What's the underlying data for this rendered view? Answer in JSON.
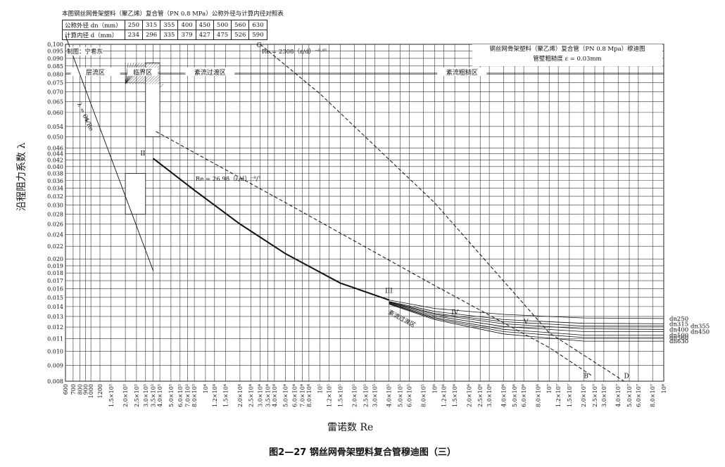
{
  "header": {
    "table_title": "本图钢丝网骨架塑料（聚乙烯）复合管（PN 0.8 MPa）公称外径与计算内径对照表",
    "row1_label": "公称外径 dn（mm）",
    "row2_label": "计算内径 d（mm）",
    "outer_diameters": [
      "250",
      "315",
      "355",
      "400",
      "450",
      "500",
      "560",
      "630"
    ],
    "inner_diameters": [
      "234",
      "296",
      "335",
      "379",
      "427",
      "475",
      "526",
      "590"
    ],
    "maker": "制图：宁希东"
  },
  "legend_box": {
    "line1": "钢丝网骨架塑料（聚乙烯）复合管（PN 0.8 Mpa）穆迪图",
    "line2": "管壁粗糙度 ε = 0.03mm"
  },
  "caption": "图2—27  钢丝网骨架塑料复合管穆迪图（三）",
  "chart_data": {
    "type": "line",
    "xscale": "log",
    "yscale": "log",
    "xlim": [
      600,
      100000000
    ],
    "ylim": [
      0.008,
      0.1
    ],
    "xlabel": "雷诺数 Re",
    "ylabel": "沿程阻力系数 λ",
    "grid": true,
    "y_ticks": [
      "0.008",
      "0.009",
      "0.010",
      "0.011",
      "0.012",
      "0.013",
      "0.014",
      "0.015",
      "0.016",
      "0.017",
      "0.018",
      "0.019",
      "0.020",
      "0.022",
      "0.024",
      "0.026",
      "0.028",
      "0.030",
      "0.032",
      "0.034",
      "0.036",
      "0.038",
      "0.040",
      "0.042",
      "0.044",
      "0.046",
      "0.050",
      "0.054",
      "0.060",
      "0.065",
      "0.070",
      "0.075",
      "0.080",
      "0.085",
      "0.090",
      "0.095",
      "0.100"
    ],
    "x_ticks": [
      {
        "v": 600,
        "t": "600"
      },
      {
        "v": 700,
        "t": "700"
      },
      {
        "v": 800,
        "t": "800"
      },
      {
        "v": 900,
        "t": "900"
      },
      {
        "v": 1000,
        "t": "1000"
      },
      {
        "v": 1200,
        "t": "1200"
      },
      {
        "v": 1500,
        "t": "1.5×10³"
      },
      {
        "v": 2000,
        "t": "2.0×10³"
      },
      {
        "v": 2500,
        "t": "2.5×10³"
      },
      {
        "v": 3000,
        "t": "3.0×10³"
      },
      {
        "v": 3500,
        "t": "3.5×10³"
      },
      {
        "v": 4000,
        "t": "4.0×10³"
      },
      {
        "v": 5000,
        "t": "5.0×10³"
      },
      {
        "v": 6000,
        "t": "6.0×10³"
      },
      {
        "v": 7000,
        "t": "7.0×10³"
      },
      {
        "v": 8000,
        "t": "8.0×10³"
      },
      {
        "v": 10000,
        "t": "10⁴"
      },
      {
        "v": 12000,
        "t": "1.2×10⁴"
      },
      {
        "v": 15000,
        "t": "1.5×10⁴"
      },
      {
        "v": 20000,
        "t": "2.0×10⁴"
      },
      {
        "v": 25000,
        "t": "2.5×10⁴"
      },
      {
        "v": 30000,
        "t": "3.0×10⁴"
      },
      {
        "v": 35000,
        "t": "3.5×10⁴"
      },
      {
        "v": 40000,
        "t": "4.0×10⁴"
      },
      {
        "v": 50000,
        "t": "5.0×10⁴"
      },
      {
        "v": 60000,
        "t": "6.0×10⁴"
      },
      {
        "v": 70000,
        "t": "7.0×10⁴"
      },
      {
        "v": 80000,
        "t": "8.0×10⁴"
      },
      {
        "v": 100000,
        "t": "10⁵"
      },
      {
        "v": 120000,
        "t": "1.2×10⁵"
      },
      {
        "v": 150000,
        "t": "1.5×10⁵"
      },
      {
        "v": 200000,
        "t": "2.0×10⁵"
      },
      {
        "v": 250000,
        "t": "2.5×10⁵"
      },
      {
        "v": 300000,
        "t": "3.0×10⁵"
      },
      {
        "v": 400000,
        "t": "4.0×10⁵"
      },
      {
        "v": 500000,
        "t": "5.0×10⁵"
      },
      {
        "v": 600000,
        "t": "6.0×10⁵"
      },
      {
        "v": 800000,
        "t": "8.0×10⁵"
      },
      {
        "v": 1000000,
        "t": "10⁶"
      },
      {
        "v": 1200000,
        "t": "1.2×10⁶"
      },
      {
        "v": 1500000,
        "t": "1.5×10⁶"
      },
      {
        "v": 2000000,
        "t": "2.0×10⁶"
      },
      {
        "v": 2500000,
        "t": "2.5×10⁶"
      },
      {
        "v": 3000000,
        "t": "3.0×10⁶"
      },
      {
        "v": 4000000,
        "t": "4.0×10⁶"
      },
      {
        "v": 5000000,
        "t": "5.0×10⁶"
      },
      {
        "v": 6000000,
        "t": "6.0×10⁶"
      },
      {
        "v": 8000000,
        "t": "8.0×10⁶"
      },
      {
        "v": 10000000,
        "t": "10⁷"
      },
      {
        "v": 12000000,
        "t": "1.2×10⁷"
      },
      {
        "v": 15000000,
        "t": "1.5×10⁷"
      },
      {
        "v": 20000000,
        "t": "2.0×10⁷"
      },
      {
        "v": 25000000,
        "t": "2.5×10⁷"
      },
      {
        "v": 30000000,
        "t": "3.0×10⁷"
      },
      {
        "v": 40000000,
        "t": "4.0×10⁷"
      },
      {
        "v": 50000000,
        "t": "5.0×10⁷"
      },
      {
        "v": 60000000,
        "t": "6.0×10⁷"
      },
      {
        "v": 80000000,
        "t": "8.0×10⁷"
      },
      {
        "v": 100000000,
        "t": "10⁸"
      }
    ],
    "regions": [
      {
        "label": "层流区",
        "from": 600,
        "to": 2000
      },
      {
        "label": "临界区",
        "from": 2000,
        "to": 4000
      },
      {
        "label": "紊流过渡区",
        "from": 4000,
        "to": 30000
      },
      {
        "label": "紊流粗糙区",
        "from": 30000,
        "to": 100000000
      }
    ],
    "formula_labels": {
      "laminar": "λ = 64/Re",
      "boundary_c": "Re = 2308（ε/d）⁻⁰·⁸⁵",
      "boundary_b": "Re = 26.98（ε/d）⁻⁸/⁷",
      "transition_area": "紊流过渡区"
    },
    "zone_marks": [
      "I",
      "II",
      "III",
      "IV",
      "V"
    ],
    "curve_marks": [
      "C",
      "B",
      "D"
    ],
    "laminar_line": {
      "x": [
        600,
        3500
      ],
      "y": [
        0.1067,
        0.0183
      ]
    },
    "smooth_curve": {
      "x": [
        3500,
        8000,
        20000,
        50000,
        150000,
        400000
      ],
      "y": [
        0.0425,
        0.0335,
        0.026,
        0.0208,
        0.0167,
        0.0147
      ]
    },
    "boundary_c": {
      "x": [
        30000,
        100000,
        1000000,
        10000000,
        45000000
      ],
      "y": [
        0.1,
        0.069,
        0.0305,
        0.0115,
        0.008
      ]
    },
    "boundary_b": {
      "x": [
        3700,
        50000,
        1000000,
        10000000,
        24000000
      ],
      "y": [
        0.052,
        0.0305,
        0.0164,
        0.0103,
        0.0083
      ]
    },
    "series": [
      {
        "name": "dn250",
        "x": [
          400000,
          1000000,
          4000000,
          20000000,
          100000000
        ],
        "y": [
          0.0147,
          0.0138,
          0.0132,
          0.01285,
          0.0128
        ]
      },
      {
        "name": "dn315",
        "x": [
          400000,
          1000000,
          4000000,
          20000000,
          100000000
        ],
        "y": [
          0.01455,
          0.0135,
          0.0127,
          0.01235,
          0.0123
        ]
      },
      {
        "name": "dn355",
        "x": [
          400000,
          1000000,
          4000000,
          20000000,
          100000000
        ],
        "y": [
          0.0145,
          0.0133,
          0.0125,
          0.0121,
          0.0121
        ]
      },
      {
        "name": "dn400",
        "x": [
          400000,
          1000000,
          4000000,
          20000000,
          100000000
        ],
        "y": [
          0.01445,
          0.0132,
          0.0123,
          0.01185,
          0.0118
        ]
      },
      {
        "name": "dn450",
        "x": [
          400000,
          1000000,
          4000000,
          20000000,
          100000000
        ],
        "y": [
          0.0144,
          0.01305,
          0.01205,
          0.0116,
          0.0116
        ]
      },
      {
        "name": "dn500",
        "x": [
          400000,
          1000000,
          4000000,
          20000000,
          100000000
        ],
        "y": [
          0.01435,
          0.0129,
          0.0118,
          0.0113,
          0.0113
        ]
      },
      {
        "name": "dn560",
        "x": [
          400000,
          1000000,
          4000000,
          20000000,
          100000000
        ],
        "y": [
          0.0143,
          0.0128,
          0.0116,
          0.0111,
          0.0111
        ]
      },
      {
        "name": "dn630",
        "x": [
          400000,
          1000000,
          4000000,
          20000000,
          100000000
        ],
        "y": [
          0.01425,
          0.0127,
          0.0114,
          0.0108,
          0.0108
        ]
      }
    ]
  }
}
